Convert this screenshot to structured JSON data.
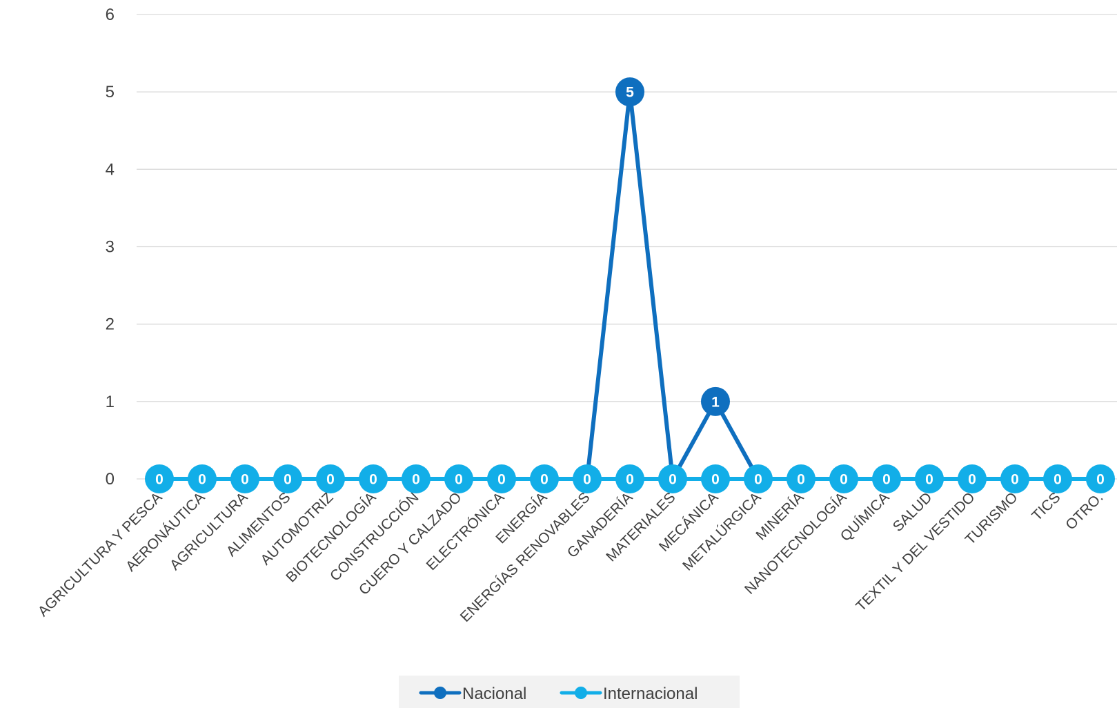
{
  "chart_data": {
    "type": "line",
    "categories": [
      "AGRICULTURA Y PESCA",
      "AERONÁUTICA",
      "AGRICULTURA",
      "ALIMENTOS",
      "AUTOMOTRIZ",
      "BIOTECNOLOGÍA",
      "CONSTRUCCIÓN",
      "CUERO Y CALZADO",
      "ELECTRÓNICA",
      "ENERGÍA",
      "ENERGÍAS RENOVABLES",
      "GANADERÍA",
      "MATERIALES",
      "MECÁNICA",
      "METALÚRGICA",
      "MINERÍA",
      "NANOTECNOLOGÍA",
      "QUÍMICA",
      "SALUD",
      "TEXTIL Y DEL VESTIDO",
      "TURISMO",
      "TICS",
      "OTRO."
    ],
    "series": [
      {
        "name": "Nacional",
        "color": "#0f6fbf",
        "values": [
          0,
          0,
          0,
          0,
          0,
          0,
          0,
          0,
          0,
          0,
          0,
          5,
          0,
          1,
          0,
          0,
          0,
          0,
          0,
          0,
          0,
          0,
          0
        ],
        "labels": [
          "",
          "",
          "",
          "",
          "",
          "",
          "",
          "",
          "",
          "",
          "",
          "5",
          "",
          "1",
          "",
          "",
          "",
          "",
          "",
          "",
          "",
          "",
          ""
        ]
      },
      {
        "name": "Internacional",
        "color": "#12aee8",
        "values": [
          0,
          0,
          0,
          0,
          0,
          0,
          0,
          0,
          0,
          0,
          0,
          0,
          0,
          0,
          0,
          0,
          0,
          0,
          0,
          0,
          0,
          0,
          0
        ],
        "labels": [
          "0",
          "0",
          "0",
          "0",
          "0",
          "0",
          "0",
          "0",
          "0",
          "0",
          "0",
          "0",
          "0",
          "0",
          "0",
          "0",
          "0",
          "0",
          "0",
          "0",
          "0",
          "0",
          "0"
        ]
      }
    ],
    "yticks": [
      "0",
      "1",
      "2",
      "3",
      "4",
      "5",
      "6"
    ],
    "ylim": [
      0,
      6
    ],
    "grid": true,
    "legend_position": "bottom"
  }
}
